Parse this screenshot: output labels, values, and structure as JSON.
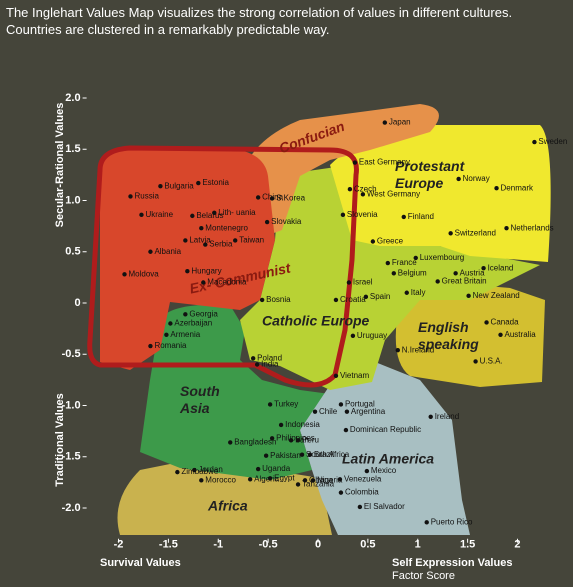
{
  "chart_data": {
    "type": "scatter",
    "title": "The Inglehart Values Map visualizes the strong correlation of values in different cultures. Countries are clustered in a remarkably predictable way.",
    "y_label_top": "Secular-Rational Values",
    "y_label_bottom": "Traditional Values",
    "x_label_left": "Survival Values",
    "x_label_right": "Self Expression Values",
    "x_unit": "Factor Score",
    "xlim": [
      -2.3,
      2.3
    ],
    "ylim": [
      -2.3,
      2.1
    ],
    "xticks": [
      -2,
      -1.5,
      -1,
      -0.5,
      0,
      0.5,
      1,
      1.5,
      2
    ],
    "yticks": [
      {
        "value": 2,
        "label": "2.0"
      },
      1.5,
      {
        "value": 1,
        "label": "1.0"
      },
      0.5,
      0,
      -0.5,
      {
        "value": -1,
        "label": "-1.0"
      },
      -1.5,
      {
        "value": -2,
        "label": "-2.0"
      }
    ],
    "regions": [
      "Confucian",
      "Protestant Europe",
      "Ex- Communist",
      "Catholic Europe",
      "English speaking",
      "South Asia",
      "Latin America",
      "Africa"
    ],
    "labels": [
      "Japan",
      "Sweden",
      "East Germany",
      "Norway",
      "Czech",
      "West Germany",
      "Denmark",
      "China",
      "S.Korea",
      "Russia",
      "Bulgaria",
      "Estonia",
      "Ukraine",
      "Belarus",
      "Lith- uania",
      "Montenegro",
      "Latvia",
      "Serbia",
      "Albania",
      "Moldova",
      "Hungary",
      "Macedonia",
      "Bosnia",
      "Taiwan",
      "Slovakia",
      "Slovenia",
      "Finland",
      "Netherlands",
      "Switzerland",
      "Greece",
      "France",
      "Luxembourg",
      "Belgium",
      "Austria",
      "Iceland",
      "Israel",
      "Italy",
      "Great Britain",
      "Croatia",
      "Spain",
      "New Zealand",
      "Georgia",
      "Azerbaijan",
      "Canada",
      "Armenia",
      "Uruguay",
      "Australia",
      "Romania",
      "N.Ireland",
      "Poland",
      "India",
      "U.S.A.",
      "Vietnam",
      "Turkey",
      "Portugal",
      "Chile",
      "Argentina",
      "Ireland",
      "Indonesia",
      "Philippines",
      "Iran",
      "Bangladesh",
      "Dominican Republic",
      "Peru",
      "Pakistan",
      "South Africa",
      "Brazil",
      "Mexico",
      "Jordan",
      "Uganda",
      "Ghana",
      "Nigeria",
      "Zimbabwe",
      "Algeria",
      "Egypt",
      "Venezuela",
      "Morocco",
      "Tanzania",
      "Colombia",
      "El Salvador",
      "Puerto Rico"
    ],
    "x": [
      0.67,
      2.17,
      0.37,
      1.41,
      0.32,
      0.45,
      1.79,
      -0.6,
      -0.46,
      -1.88,
      -1.58,
      -1.2,
      -1.77,
      -1.26,
      -1.04,
      -1.17,
      -1.33,
      -1.13,
      -1.68,
      -1.94,
      -1.31,
      -1.15,
      -0.56,
      -0.83,
      -0.51,
      0.25,
      0.86,
      1.89,
      1.33,
      0.55,
      0.7,
      0.98,
      0.76,
      1.38,
      1.66,
      0.31,
      0.89,
      1.2,
      0.18,
      0.48,
      1.51,
      -1.33,
      -1.48,
      1.69,
      -1.52,
      0.35,
      1.83,
      -1.68,
      0.8,
      -0.65,
      -0.61,
      1.58,
      0.18,
      -0.48,
      0.23,
      -0.03,
      0.29,
      1.13,
      -0.37,
      -0.46,
      -0.27,
      -0.88,
      0.28,
      -0.2,
      -0.52,
      -0.16,
      -0.08,
      0.49,
      -1.24,
      -0.6,
      -0.13,
      -0.05,
      -1.41,
      -0.68,
      -0.48,
      0.22,
      -1.17,
      -0.2,
      0.23,
      0.42,
      1.09
    ],
    "values": [
      1.76,
      1.57,
      1.37,
      1.21,
      1.11,
      1.06,
      1.12,
      1.03,
      1.02,
      1.04,
      1.14,
      1.17,
      0.86,
      0.85,
      0.88,
      0.73,
      0.61,
      0.57,
      0.5,
      0.28,
      0.31,
      0.2,
      0.03,
      0.61,
      0.79,
      0.86,
      0.84,
      0.73,
      0.68,
      0.6,
      0.39,
      0.44,
      0.29,
      0.29,
      0.34,
      0.2,
      0.1,
      0.21,
      0.03,
      0.06,
      0.07,
      -0.11,
      -0.2,
      -0.19,
      -0.31,
      -0.32,
      -0.31,
      -0.42,
      -0.46,
      -0.54,
      -0.6,
      -0.57,
      -0.71,
      -0.99,
      -0.99,
      -1.06,
      -1.06,
      -1.11,
      -1.19,
      -1.32,
      -1.34,
      -1.36,
      -1.24,
      -1.34,
      -1.49,
      -1.48,
      -1.48,
      -1.64,
      -1.63,
      -1.62,
      -1.73,
      -1.73,
      -1.65,
      -1.72,
      -1.71,
      -1.72,
      -1.73,
      -1.77,
      -1.85,
      -1.99,
      -2.14
    ]
  }
}
